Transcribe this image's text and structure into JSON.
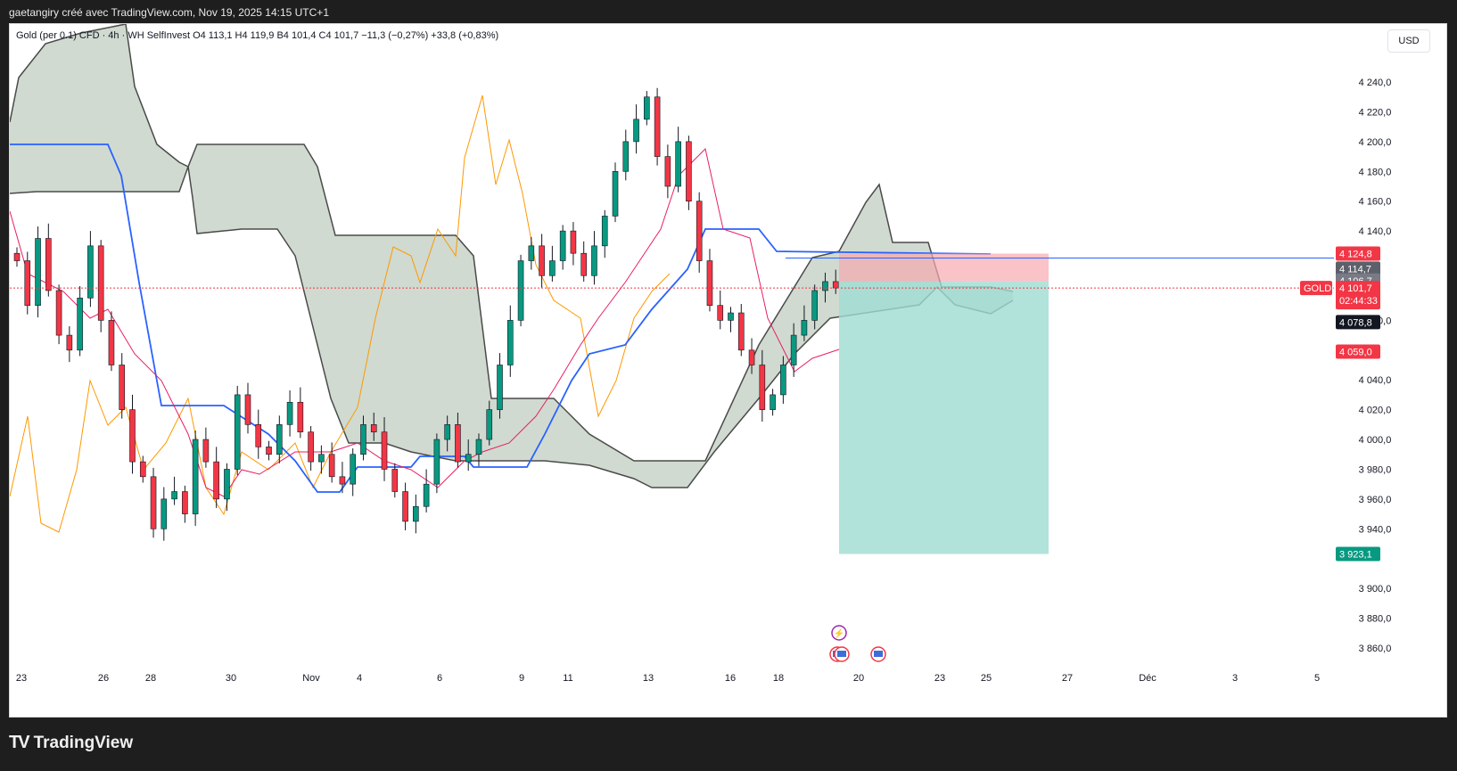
{
  "header": {
    "credit": "gaetangiry créé avec TradingView.com, Nov 19, 2025 14:15 UTC+1"
  },
  "legend": {
    "symbol": "Gold (per 0.1) CFD · 4h · WH SelfInvest",
    "ohlc": "O4 113,1  H4 119,9  B4 101,4  C4 101,7  −11,3 (−0,27%)  +33,8 (+0,83%)"
  },
  "currency": "USD",
  "footer": {
    "brand": "TradingView"
  },
  "colors": {
    "up": "#089981",
    "down": "#f23645",
    "kijun": "#2962ff",
    "tenkan": "#e91e63",
    "lagging": "#ff9800",
    "cloud": "#c8d3c8",
    "cloud_edge": "#4a4a4a",
    "stop": "#f7a9b0",
    "target": "#9fdcd2"
  },
  "chart_data": {
    "type": "candlestick",
    "title": "Gold (per 0.1) CFD · 4h · WH SelfInvest",
    "y_ticks": [
      "4 240,0",
      "4 220,0",
      "4 200,0",
      "4 180,0",
      "4 160,0",
      "4 140,0",
      "4 080,0",
      "4 040,0",
      "4 020,0",
      "4 000,0",
      "3 980,0",
      "3 960,0",
      "3 940,0",
      "3 900,0",
      "3 880,0",
      "3 860,0"
    ],
    "y_range": [
      3845,
      4255
    ],
    "x_ticks": [
      "23",
      "26",
      "28",
      "30",
      "Nov",
      "4",
      "6",
      "9",
      "11",
      "13",
      "16",
      "18",
      "20",
      "23",
      "25",
      "27",
      "Déc",
      "3",
      "5"
    ],
    "price_labels": {
      "stop": "4 124,8",
      "ask": "4 114,7",
      "mid": "4 106,7",
      "symbol": "GOLD",
      "last": "4 101,7",
      "countdown": "02:44:33",
      "hidden": "4 078,8",
      "tenkan": "4 059,0",
      "target": "3 923,1"
    },
    "position": {
      "type": "short",
      "entry": 4106,
      "stop": 4124.8,
      "target": 3923.1
    },
    "close_series": [
      4120,
      4090,
      4135,
      4100,
      4070,
      4060,
      4095,
      4130,
      4080,
      4050,
      4020,
      3985,
      3975,
      3940,
      3960,
      3965,
      3950,
      4000,
      3985,
      3960,
      3980,
      4030,
      4010,
      3995,
      3990,
      4010,
      4025,
      4005,
      3985,
      3990,
      3975,
      3970,
      3990,
      4010,
      4005,
      3980,
      3965,
      3945,
      3955,
      3970,
      4000,
      4010,
      3985,
      3990,
      4000,
      4020,
      4050,
      4080,
      4120,
      4130,
      4110,
      4120,
      4140,
      4125,
      4110,
      4130,
      4150,
      4180,
      4200,
      4215,
      4230,
      4190,
      4170,
      4200,
      4160,
      4120,
      4090,
      4080,
      4085,
      4060,
      4050,
      4020,
      4030,
      4050,
      4070,
      4080,
      4100,
      4106,
      4101.7
    ],
    "indicators": [
      "Ichimoku Cloud",
      "Kijun-sen",
      "Tenkan-sen",
      "Chikou Span"
    ]
  }
}
